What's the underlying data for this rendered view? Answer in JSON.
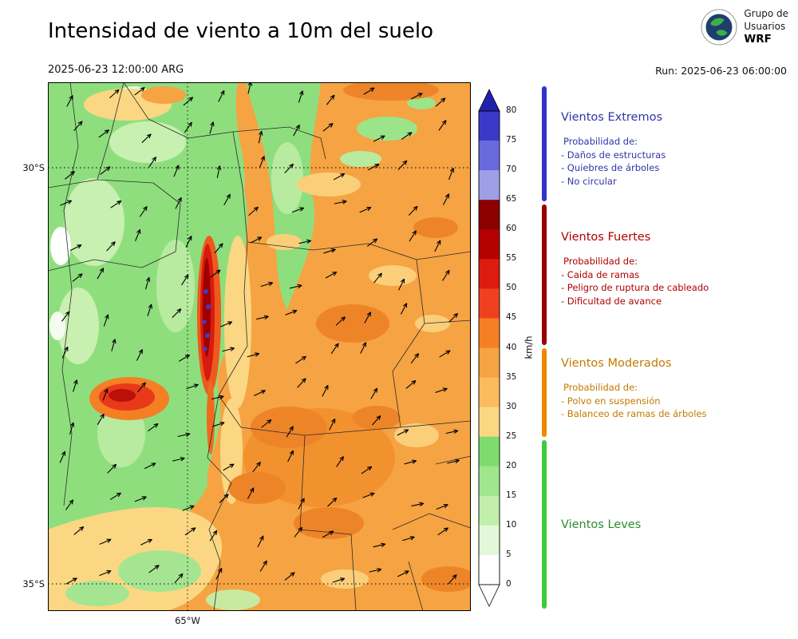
{
  "header": {
    "title": "Intensidad de viento a 10m del suelo",
    "datetime": "2025-06-23 12:00:00 ARG",
    "run": "Run: 2025-06-23 06:00:00",
    "logo": {
      "line1": "Grupo de",
      "line2": "Usuarios",
      "line3": "WRF"
    }
  },
  "axes": {
    "lat_top": "30°S",
    "lat_bottom": "35°S",
    "lon": "65°W"
  },
  "colorbar": {
    "unit": "km/h",
    "ticks": [
      "80",
      "75",
      "70",
      "65",
      "60",
      "55",
      "50",
      "45",
      "40",
      "35",
      "30",
      "25",
      "20",
      "15",
      "10",
      "5",
      "0"
    ],
    "segments_top_to_bottom": [
      "#3A3AC8",
      "#6A6ADD",
      "#9F9FE8",
      "#8C0000",
      "#B40000",
      "#DD1C10",
      "#EF4020",
      "#F57F24",
      "#F6A343",
      "#FBBC5E",
      "#FBD783",
      "#7EDC6E",
      "#A0E68C",
      "#C2EFAC",
      "#E2F8D8",
      "#FFFFFF"
    ],
    "over_color": "#2121B0",
    "under_color": "#FFFFFF"
  },
  "legend": {
    "sections": [
      {
        "id": "extremos",
        "title": "Vientos Extremos",
        "color": "#3333AA",
        "bar_color": "#3333CC",
        "lines": [
          "Probabilidad de:",
          "- Daños de estructuras",
          "- Quiebres de árboles",
          "- No circular"
        ]
      },
      {
        "id": "fuertes",
        "title": "Vientos Fuertes",
        "color": "#B00000",
        "bar_color": "#990000",
        "lines": [
          "Probabilidad de:",
          "- Caida de ramas",
          "- Peligro de ruptura de cableado",
          "- Dificultad de avance"
        ]
      },
      {
        "id": "moderados",
        "title": "Vientos Moderados",
        "color": "#C27A00",
        "bar_color": "#EE8800",
        "lines": [
          "Probabilidad de:",
          "- Polvo en suspensión",
          "- Balanceo de ramas de árboles"
        ]
      },
      {
        "id": "leves",
        "title": "Vientos Leves",
        "color": "#2E8B2E",
        "bar_color": "#3DCB3D",
        "lines": []
      }
    ]
  }
}
